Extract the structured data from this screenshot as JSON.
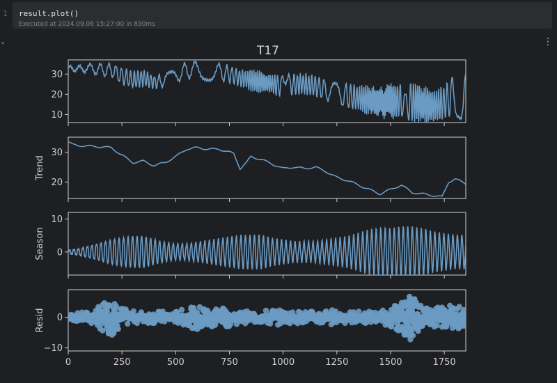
{
  "editor": {
    "line_number": "1",
    "code": "result.plot()",
    "execution_info": "Executed at 2024.09.06 15:27:00 in 830ms",
    "collapse_icon": "chevron-down-icon",
    "menu_icon": "more-vertical-icon"
  },
  "colors": {
    "background": "#1e1f22",
    "cell": "#2b2d30",
    "line": "#6b9bc3",
    "axis": "#d0d0d0"
  },
  "chart_data": [
    {
      "type": "line",
      "title": "T17",
      "ylabel": "",
      "xlim": [
        0,
        1850
      ],
      "ylim": [
        6,
        37
      ],
      "yticks": [
        10,
        20,
        30
      ],
      "xticks": [
        0,
        250,
        500,
        750,
        1000,
        1250,
        1500,
        1750
      ],
      "x": [
        0,
        50,
        100,
        150,
        200,
        250,
        300,
        350,
        400,
        450,
        500,
        550,
        600,
        650,
        700,
        750,
        800,
        850,
        900,
        950,
        1000,
        1050,
        1100,
        1150,
        1200,
        1250,
        1300,
        1350,
        1400,
        1450,
        1500,
        1550,
        1600,
        1650,
        1700,
        1750,
        1800,
        1850
      ],
      "values": [
        33,
        32.5,
        33,
        32,
        32,
        29,
        27,
        28,
        26,
        27,
        29,
        32,
        32,
        31,
        31,
        30,
        28,
        27,
        26,
        25,
        24,
        25,
        25,
        24,
        22,
        21,
        19,
        18,
        17,
        16,
        16,
        17,
        16,
        15,
        14,
        16,
        20,
        18
      ],
      "amplitude": [
        1,
        1.5,
        2,
        3,
        3,
        4,
        4,
        4,
        3,
        3,
        3,
        4,
        4,
        4,
        4,
        4,
        4,
        5,
        5,
        5,
        5,
        5,
        5,
        5,
        5,
        5,
        6,
        6,
        7,
        7,
        9,
        8,
        10,
        9,
        8,
        8,
        10,
        12
      ]
    },
    {
      "type": "line",
      "ylabel": "Trend",
      "xlim": [
        0,
        1850
      ],
      "ylim": [
        14.5,
        35
      ],
      "yticks": [
        20,
        30
      ],
      "x": [
        0,
        20,
        50,
        150,
        200,
        250,
        300,
        350,
        400,
        450,
        500,
        550,
        600,
        650,
        700,
        750,
        770,
        800,
        830,
        850,
        900,
        950,
        1000,
        1050,
        1100,
        1150,
        1200,
        1250,
        1300,
        1350,
        1400,
        1450,
        1500,
        1550,
        1600,
        1650,
        1700,
        1740,
        1770,
        1800,
        1850
      ],
      "values": [
        33.5,
        32.5,
        32.2,
        31.8,
        31.5,
        29,
        26.5,
        27,
        25.5,
        26.5,
        28.5,
        31,
        31.5,
        31,
        31,
        30,
        29.5,
        24.5,
        26.5,
        28.5,
        27.5,
        26,
        24.5,
        25,
        24.5,
        25,
        23.5,
        21.5,
        20.5,
        19,
        17.5,
        16,
        17.5,
        19,
        16.5,
        16,
        15.5,
        15,
        20,
        21,
        19.5
      ]
    },
    {
      "type": "line",
      "ylabel": "Season",
      "xlim": [
        0,
        1850
      ],
      "ylim": [
        -7,
        12
      ],
      "yticks": [
        0,
        10
      ],
      "x": [
        0,
        50,
        100,
        150,
        200,
        250,
        300,
        350,
        400,
        450,
        500,
        550,
        600,
        650,
        700,
        750,
        800,
        850,
        900,
        950,
        1000,
        1050,
        1100,
        1150,
        1200,
        1250,
        1300,
        1350,
        1400,
        1450,
        1500,
        1550,
        1600,
        1650,
        1700,
        1750,
        1800,
        1850
      ],
      "amplitude": [
        0.5,
        1,
        2,
        3,
        4,
        4.5,
        5,
        5,
        4,
        3,
        2.5,
        2.5,
        3,
        3.5,
        4,
        4.5,
        5,
        5,
        5,
        4,
        3.5,
        3,
        3,
        3,
        3.5,
        4,
        4.5,
        5.5,
        6.5,
        7,
        7,
        7.5,
        7.5,
        7,
        6,
        5.5,
        5,
        5
      ]
    },
    {
      "type": "scatter",
      "ylabel": "Resid",
      "xlim": [
        0,
        1850
      ],
      "ylim": [
        -11,
        9
      ],
      "yticks": [
        -10,
        0
      ],
      "x": [
        0,
        50,
        100,
        150,
        200,
        250,
        300,
        350,
        400,
        450,
        500,
        550,
        600,
        650,
        700,
        750,
        800,
        850,
        900,
        950,
        1000,
        1050,
        1100,
        1150,
        1200,
        1250,
        1300,
        1350,
        1400,
        1450,
        1500,
        1550,
        1600,
        1650,
        1700,
        1750,
        1800,
        1850
      ],
      "spread": [
        1,
        1.5,
        2,
        4,
        6,
        3,
        2,
        2,
        2,
        2,
        2,
        3,
        4,
        3,
        3,
        3,
        2,
        2,
        2,
        3,
        2,
        2,
        2,
        2,
        3,
        2,
        2,
        2,
        2,
        2,
        3,
        5,
        8,
        3,
        3,
        4,
        4,
        3
      ]
    }
  ]
}
